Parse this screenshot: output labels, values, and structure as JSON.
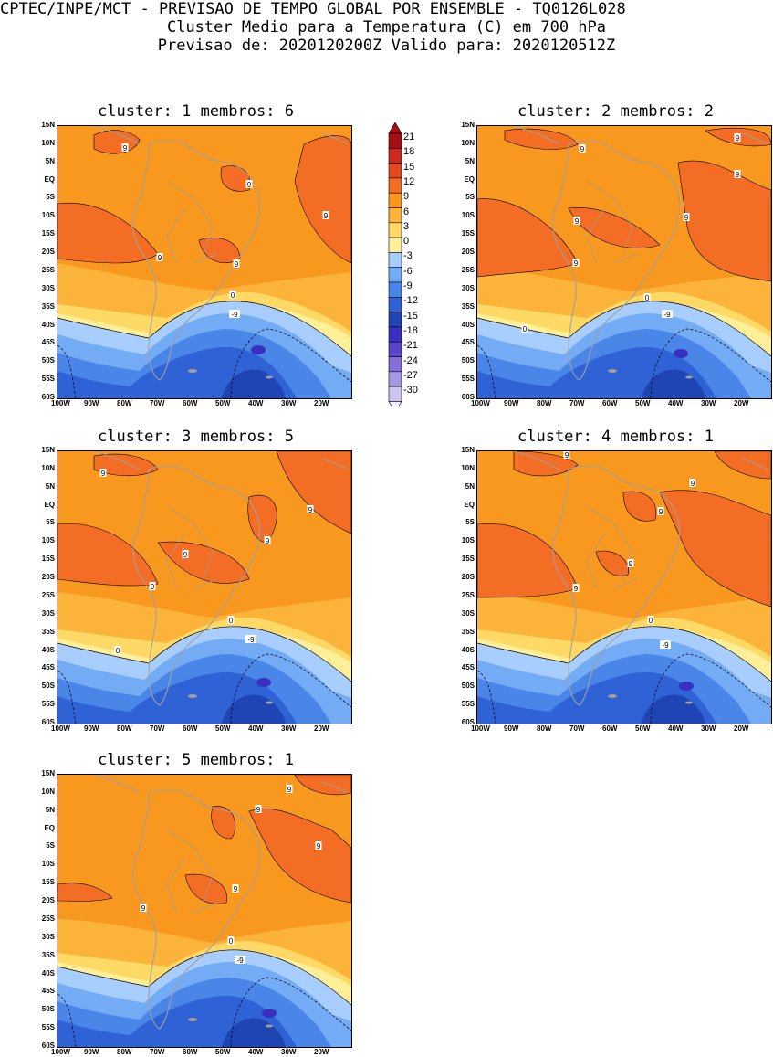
{
  "header": {
    "line1": "CPTEC/INPE/MCT - PREVISAO DE TEMPO GLOBAL POR ENSEMBLE - TQ0126L028",
    "line2": "Cluster Medio para a Temperatura (C) em 700 hPa",
    "line3": "Previsao de: 2020120200Z   Valido para: 2020120512Z"
  },
  "axes": {
    "y_labels": [
      "15N",
      "10N",
      "5N",
      "EQ",
      "5S",
      "10S",
      "15S",
      "20S",
      "25S",
      "30S",
      "35S",
      "40S",
      "45S",
      "50S",
      "55S",
      "60S"
    ],
    "x_labels": [
      "100W",
      "90W",
      "80W",
      "70W",
      "60W",
      "50W",
      "40W",
      "30W",
      "20W"
    ]
  },
  "colorbar": {
    "labels": [
      "21",
      "18",
      "15",
      "12",
      "9",
      "6",
      "3",
      "0",
      "-3",
      "-6",
      "-9",
      "-12",
      "-15",
      "-18",
      "-21",
      "-24",
      "-27",
      "-30"
    ],
    "colors": [
      "#a50f15",
      "#cb2b1e",
      "#e34a1f",
      "#f46d25",
      "#f8981f",
      "#fbb33a",
      "#ffd966",
      "#ffef99",
      "#a8ceff",
      "#74abf5",
      "#4a86e8",
      "#2f62d4",
      "#1f45b5",
      "#3a2fbe",
      "#5a44c9",
      "#8470d6",
      "#a898e2",
      "#cfc3ef"
    ]
  },
  "clusters": [
    {
      "label": "cluster: 1   membros: 6",
      "contour_labels": [
        "9",
        "9",
        "9",
        "9",
        "9",
        "0",
        "-9"
      ]
    },
    {
      "label": "cluster: 2   membros: 2",
      "contour_labels": [
        "9",
        "9",
        "9",
        "9",
        "9",
        "9",
        "0",
        "0",
        "-9"
      ]
    },
    {
      "label": "cluster: 3   membros: 5",
      "contour_labels": [
        "9",
        "9",
        "9",
        "9",
        "9",
        "0",
        "0",
        "-9"
      ]
    },
    {
      "label": "cluster: 4   membros: 1",
      "contour_labels": [
        "9",
        "9",
        "9",
        "9",
        "9",
        "0",
        "-9"
      ]
    },
    {
      "label": "cluster: 5   membros: 1",
      "contour_labels": [
        "9",
        "9",
        "9",
        "9",
        "9",
        "0",
        "-9"
      ]
    }
  ]
}
